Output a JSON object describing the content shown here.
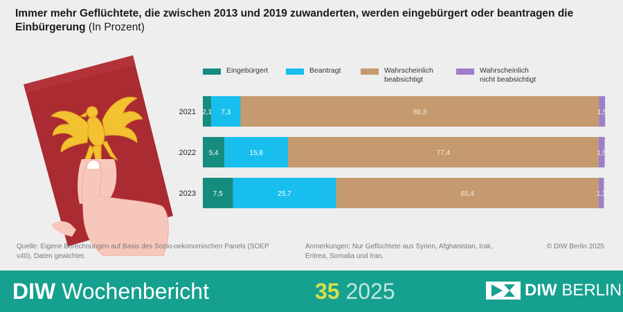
{
  "title": "Immer mehr Geflüchtete, die zwischen 2013 und 2019 zuwanderten, werden eingebürgert oder beantragen die Einbürgerung",
  "subtitle": "(In Prozent)",
  "legend": [
    {
      "label": "Eingebürgert",
      "color": "#168c7e"
    },
    {
      "label": "Beantragt",
      "color": "#18bfee"
    },
    {
      "label": "Wahrscheinlich\nbeabsichtigt",
      "color": "#c59a6e"
    },
    {
      "label": "Wahrscheinlich\nnicht beabsichtigt",
      "color": "#9d7fc9"
    }
  ],
  "chart_data": {
    "type": "bar",
    "orientation": "horizontal",
    "stacked": true,
    "categories": [
      "2021",
      "2022",
      "2023"
    ],
    "series": [
      {
        "name": "Eingebürgert",
        "color": "#168c7e",
        "values": [
          2.1,
          5.4,
          7.5
        ],
        "labels": [
          "2,1",
          "5,4",
          "7,5"
        ]
      },
      {
        "name": "Beantragt",
        "color": "#18bfee",
        "values": [
          7.3,
          15.8,
          25.7
        ],
        "labels": [
          "7,3",
          "15,8",
          "25,7"
        ]
      },
      {
        "name": "Wahrscheinlich beabsichtigt",
        "color": "#c59a6e",
        "values": [
          89.3,
          77.4,
          65.4
        ],
        "labels": [
          "89,3",
          "77,4",
          "65,4"
        ]
      },
      {
        "name": "Wahrscheinlich nicht beabsichtigt",
        "color": "#9d7fc9",
        "values": [
          1.5,
          1.5,
          1.3
        ],
        "labels": [
          "1,5",
          "1,5",
          "1,3"
        ]
      }
    ],
    "xlim": [
      0,
      100
    ],
    "grid": false,
    "legend_position": "top"
  },
  "source": "Quelle: Eigene Berechnungen auf Basis des Sozio-oekonomischen Panels (SOEP v40), Daten gewichtet.",
  "notes": "Anmerkungen: Nur Geflüchtete aus Syrien, Afghanistan, Irak, Eritrea, Somalia und Iran.",
  "copyright": "© DIW Berlin 2025",
  "footer": {
    "brand_bold": "DIW",
    "brand_light": "Wochenbericht",
    "issue_number": "35",
    "issue_year": "2025",
    "logo_bold": "DIW",
    "logo_light": "BERLIN",
    "background_color": "#16a08f"
  }
}
